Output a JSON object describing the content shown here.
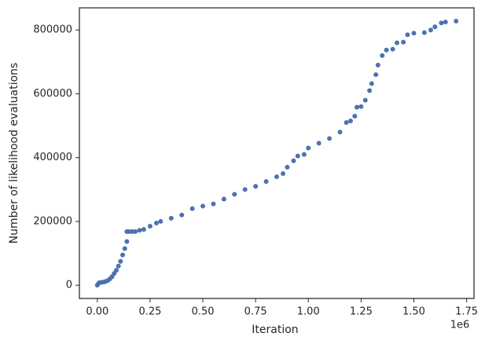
{
  "chart_data": {
    "type": "scatter",
    "x_label": "Iteration",
    "y_label": "Number of likelihood evaluations",
    "x_offset_label": "1e6",
    "color": "#4c72b0",
    "x": [
      0,
      5000,
      10000,
      20000,
      30000,
      40000,
      50000,
      60000,
      70000,
      80000,
      90000,
      100000,
      110000,
      120000,
      130000,
      140000,
      140000,
      150000,
      165000,
      180000,
      200000,
      220000,
      250000,
      280000,
      300000,
      350000,
      400000,
      450000,
      500000,
      550000,
      600000,
      650000,
      700000,
      750000,
      800000,
      850000,
      880000,
      900000,
      930000,
      950000,
      980000,
      1000000,
      1050000,
      1100000,
      1150000,
      1180000,
      1200000,
      1220000,
      1230000,
      1250000,
      1270000,
      1290000,
      1300000,
      1320000,
      1330000,
      1350000,
      1370000,
      1400000,
      1420000,
      1450000,
      1470000,
      1500000,
      1550000,
      1580000,
      1600000,
      1630000,
      1650000,
      1700000
    ],
    "values": [
      0,
      5000,
      8000,
      9000,
      10000,
      12000,
      15000,
      20000,
      27000,
      37000,
      47000,
      60000,
      75000,
      95000,
      115000,
      137000,
      168000,
      168000,
      168000,
      168000,
      172000,
      175000,
      185000,
      195000,
      200000,
      210000,
      220000,
      240000,
      248000,
      255000,
      270000,
      285000,
      300000,
      310000,
      325000,
      340000,
      350000,
      370000,
      390000,
      405000,
      410000,
      430000,
      445000,
      460000,
      480000,
      510000,
      515000,
      530000,
      558000,
      560000,
      580000,
      610000,
      632000,
      660000,
      690000,
      720000,
      737000,
      740000,
      760000,
      762000,
      785000,
      790000,
      792000,
      800000,
      810000,
      822000,
      825000,
      828000
    ],
    "xlim": [
      -85000,
      1785000
    ],
    "ylim": [
      -41400,
      869400
    ],
    "xticks": [
      {
        "value": 0,
        "label": "0.00"
      },
      {
        "value": 250000,
        "label": "0.25"
      },
      {
        "value": 500000,
        "label": "0.50"
      },
      {
        "value": 750000,
        "label": "0.75"
      },
      {
        "value": 1000000,
        "label": "1.00"
      },
      {
        "value": 1250000,
        "label": "1.25"
      },
      {
        "value": 1500000,
        "label": "1.50"
      },
      {
        "value": 1750000,
        "label": "1.75"
      }
    ],
    "yticks": [
      0,
      200000,
      400000,
      600000,
      800000
    ]
  }
}
